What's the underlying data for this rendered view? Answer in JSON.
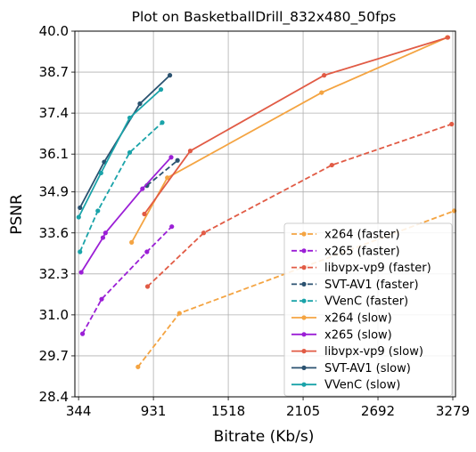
{
  "chart_data": {
    "type": "line",
    "title": "Plot on BasketballDrill_832x480_50fps",
    "xlabel": "Bitrate (Kb/s)",
    "ylabel": "PSNR",
    "xlim": [
      315,
      3300
    ],
    "ylim": [
      28.4,
      40.0
    ],
    "xticks": [
      344,
      931,
      1518,
      2105,
      2692,
      3279
    ],
    "yticks": [
      28.4,
      29.7,
      31.0,
      32.3,
      33.6,
      34.9,
      36.1,
      37.4,
      38.7,
      40.0
    ],
    "ytick_labels": [
      "28.4",
      "29.7",
      "31.0",
      "32.3",
      "33.6",
      "34.9",
      "36.1",
      "37.4",
      "38.7",
      "40.0"
    ],
    "grid": true,
    "legend_position": "lower-right",
    "series": [
      {
        "name": "x264 (faster)",
        "color": "#f4a442",
        "dash": true,
        "points": [
          [
            810,
            29.35
          ],
          [
            1135,
            31.05
          ],
          [
            3290,
            34.3
          ]
        ]
      },
      {
        "name": "x265 (faster)",
        "color": "#9b1fd6",
        "dash": true,
        "points": [
          [
            375,
            30.4
          ],
          [
            525,
            31.5
          ],
          [
            880,
            33.0
          ],
          [
            1075,
            33.8
          ]
        ]
      },
      {
        "name": "libvpx-vp9 (faster)",
        "color": "#e15b45",
        "dash": true,
        "points": [
          [
            885,
            31.9
          ],
          [
            1325,
            33.6
          ],
          [
            2330,
            35.75
          ],
          [
            3270,
            37.05
          ]
        ]
      },
      {
        "name": "SVT-AV1 (faster)",
        "color": "#2b5270",
        "dash": true,
        "points": [
          [
            880,
            35.1
          ],
          [
            1120,
            35.9
          ]
        ]
      },
      {
        "name": "VVenC (faster)",
        "color": "#1aa3a9",
        "dash": true,
        "points": [
          [
            355,
            33.0
          ],
          [
            495,
            34.3
          ],
          [
            745,
            36.15
          ],
          [
            1000,
            37.1
          ]
        ]
      },
      {
        "name": "x264 (slow)",
        "color": "#f4a442",
        "dash": false,
        "points": [
          [
            760,
            33.3
          ],
          [
            1040,
            35.35
          ],
          [
            2250,
            38.05
          ],
          [
            3235,
            39.8
          ]
        ]
      },
      {
        "name": "x265 (slow)",
        "color": "#9b1fd6",
        "dash": false,
        "points": [
          [
            365,
            32.35
          ],
          [
            535,
            33.45
          ],
          [
            555,
            33.6
          ],
          [
            845,
            35.0
          ],
          [
            1070,
            36.0
          ]
        ]
      },
      {
        "name": "libvpx-vp9 (slow)",
        "color": "#e15b45",
        "dash": false,
        "points": [
          [
            860,
            34.2
          ],
          [
            1220,
            36.2
          ],
          [
            2270,
            38.6
          ],
          [
            3240,
            39.8
          ]
        ]
      },
      {
        "name": "SVT-AV1 (slow)",
        "color": "#2b5270",
        "dash": false,
        "points": [
          [
            355,
            34.4
          ],
          [
            545,
            35.85
          ],
          [
            825,
            37.7
          ],
          [
            1060,
            38.6
          ]
        ]
      },
      {
        "name": "VVenC (slow)",
        "color": "#1aa3a9",
        "dash": false,
        "points": [
          [
            345,
            34.1
          ],
          [
            520,
            35.5
          ],
          [
            745,
            37.25
          ],
          [
            990,
            38.15
          ]
        ]
      }
    ]
  }
}
